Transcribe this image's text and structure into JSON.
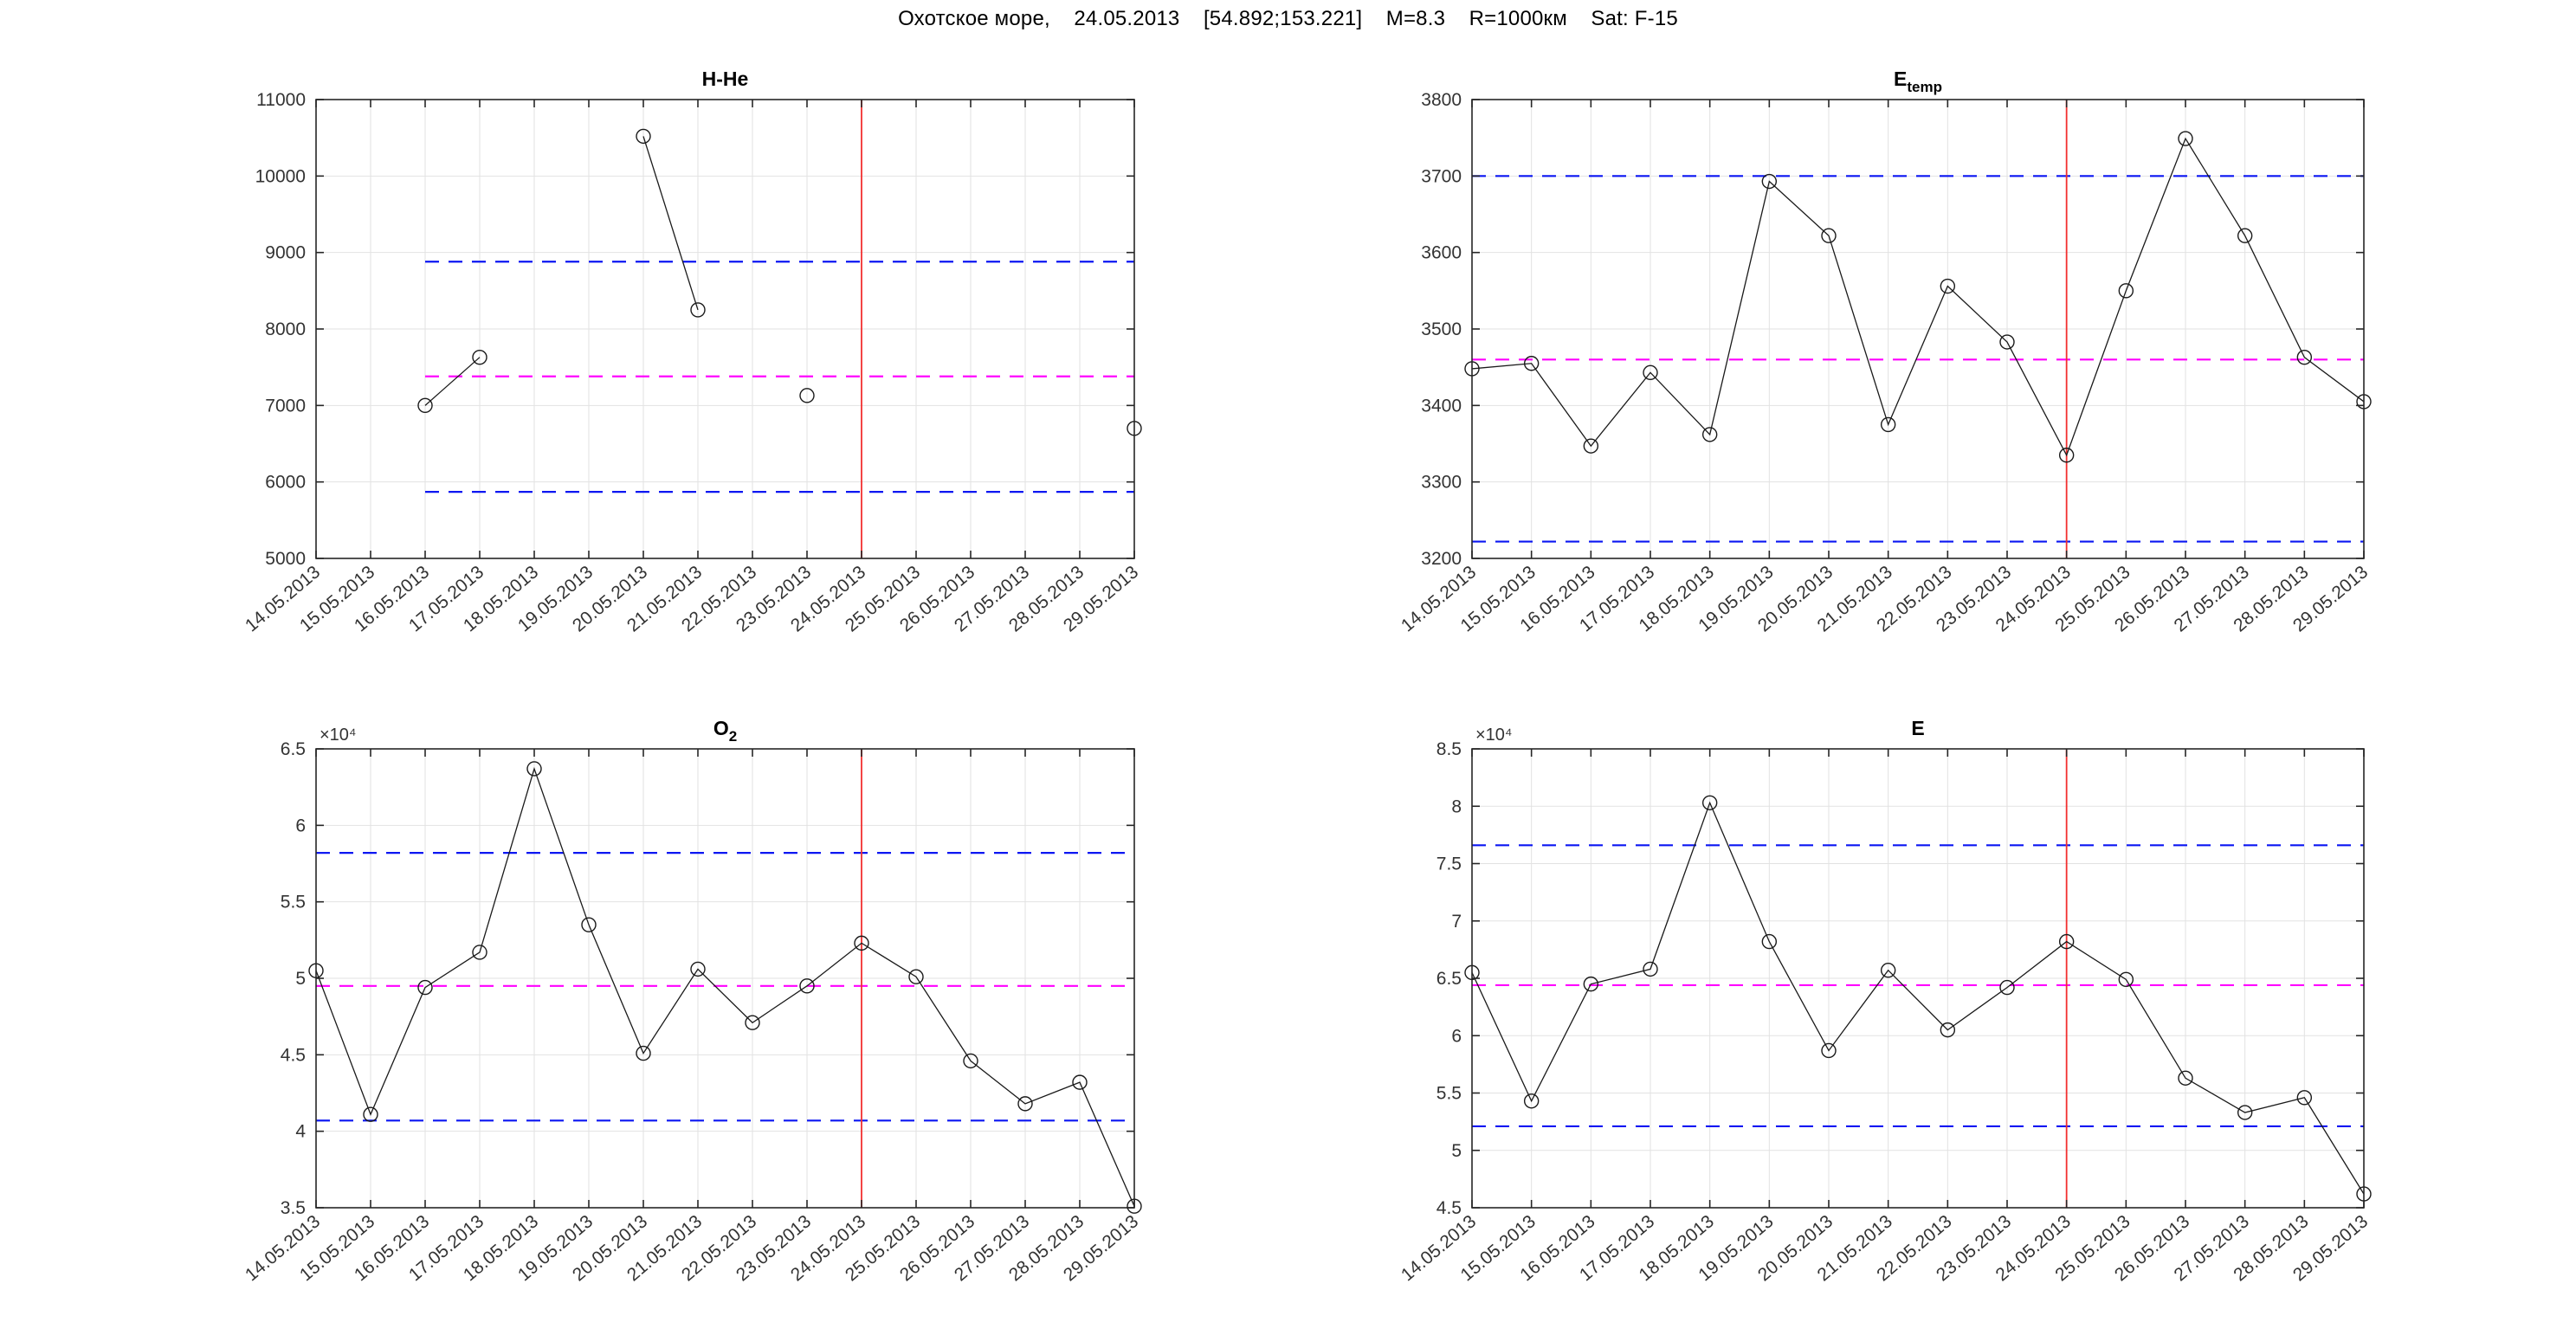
{
  "header": {
    "title": "Охотское море,    24.05.2013    [54.892;153.221]    M=8.3    R=1000км    Sat: F-15"
  },
  "styles": {
    "series_color": "#1a1a1a",
    "bound_color": "#0b16f2",
    "mean_color": "#ff00ff",
    "event_color": "#f23030",
    "grid_color": "#e2e2e2",
    "axis_color": "#262626",
    "label_color": "#333333"
  },
  "categories": [
    "14.05.2013",
    "15.05.2013",
    "16.05.2013",
    "17.05.2013",
    "18.05.2013",
    "19.05.2013",
    "20.05.2013",
    "21.05.2013",
    "22.05.2013",
    "23.05.2013",
    "24.05.2013",
    "25.05.2013",
    "26.05.2013",
    "27.05.2013",
    "28.05.2013",
    "29.05.2013"
  ],
  "event_line_category": "24.05.2013",
  "chart_data": [
    {
      "id": "h-he",
      "type": "line",
      "title_main": "H-He",
      "title_sub": "",
      "unit_exponent_label": "",
      "xlabel": "",
      "ylabel": "",
      "ylim": [
        5000,
        11000
      ],
      "ytick_step": 1000,
      "grid": true,
      "legend": "none",
      "values": [
        null,
        null,
        7000,
        7630,
        null,
        null,
        10520,
        8250,
        null,
        7130,
        null,
        null,
        null,
        null,
        null,
        6700
      ],
      "upper_bound": 8880,
      "mean_line": 7380,
      "lower_bound": 5870,
      "event_index": 10
    },
    {
      "id": "e-temp",
      "type": "line",
      "title_main": "E",
      "title_sub": "temp",
      "unit_exponent_label": "",
      "xlabel": "",
      "ylabel": "",
      "ylim": [
        3200,
        3800
      ],
      "ytick_step": 100,
      "grid": true,
      "legend": "none",
      "values": [
        3448,
        3455,
        3347,
        3443,
        3362,
        3693,
        3622,
        3375,
        3556,
        3483,
        3335,
        3550,
        3749,
        3622,
        3463,
        3405
      ],
      "upper_bound": 3700,
      "mean_line": 3460,
      "lower_bound": 3222,
      "event_index": 10
    },
    {
      "id": "o2",
      "type": "line",
      "title_main": "O",
      "title_sub": "2",
      "unit_exponent_label": "×10⁴",
      "xlabel": "",
      "ylabel": "",
      "ylim": [
        3.5,
        6.5
      ],
      "ytick_step": 0.5,
      "grid": true,
      "legend": "none",
      "values": [
        5.05,
        4.11,
        4.94,
        5.17,
        6.37,
        5.35,
        4.51,
        5.06,
        4.71,
        4.95,
        5.23,
        5.01,
        4.46,
        4.18,
        4.32,
        3.51
      ],
      "upper_bound": 5.82,
      "mean_line": 4.95,
      "lower_bound": 4.07,
      "event_index": 10
    },
    {
      "id": "e",
      "type": "line",
      "title_main": "E",
      "title_sub": "",
      "unit_exponent_label": "×10⁴",
      "xlabel": "",
      "ylabel": "",
      "ylim": [
        4.5,
        8.5
      ],
      "ytick_step": 0.5,
      "grid": true,
      "legend": "none",
      "values": [
        6.55,
        5.43,
        6.45,
        6.58,
        8.03,
        6.82,
        5.87,
        6.57,
        6.05,
        6.42,
        6.82,
        6.49,
        5.63,
        5.33,
        5.46,
        4.62
      ],
      "upper_bound": 7.66,
      "mean_line": 6.44,
      "lower_bound": 5.21,
      "event_index": 10
    }
  ]
}
